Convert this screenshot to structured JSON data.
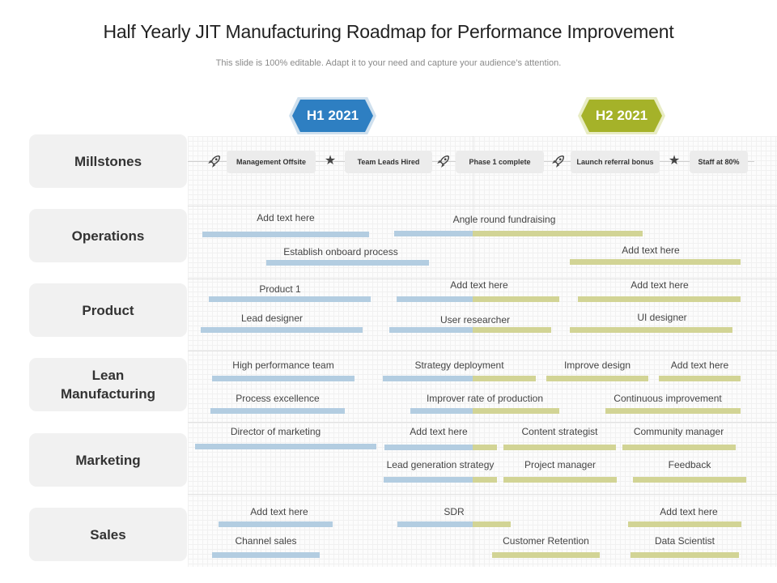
{
  "title": "Half Yearly JIT Manufacturing Roadmap for Performance Improvement",
  "subtitle": "This slide is 100% editable. Adapt it to your need and capture your audience’s attention.",
  "colors": {
    "h1": "#2e7fc2",
    "h2": "#a5b229",
    "bar_h1": "#b3cde1",
    "bar_h2": "#d2d495"
  },
  "periods": [
    {
      "label": "H1 2021",
      "color": "#2e7fc2"
    },
    {
      "label": "H2 2021",
      "color": "#a5b229"
    }
  ],
  "rows": [
    {
      "label": "Millstones"
    },
    {
      "label": "Operations"
    },
    {
      "label": "Product"
    },
    {
      "label": "Lean\nManufacturing"
    },
    {
      "label": "Marketing"
    },
    {
      "label": "Sales"
    }
  ],
  "milestones": [
    {
      "label": "Management Offsite",
      "icon": "rocket-icon"
    },
    {
      "label": "Team Leads Hired",
      "icon": "star-icon"
    },
    {
      "label": "Phase 1 complete",
      "icon": "rocket-icon"
    },
    {
      "label": "Launch referral bonus",
      "icon": "rocket-icon"
    },
    {
      "label": "Staff at 80%",
      "icon": "star-icon"
    }
  ],
  "tasks": {
    "operations": [
      "Add text here",
      "Angle round fundraising",
      "Establish onboard process",
      "Add text here"
    ],
    "product": [
      "Product 1",
      "Add text here",
      "Add text here",
      "Lead designer",
      "User researcher",
      "UI designer"
    ],
    "lean": [
      "High performance team",
      "Strategy deployment",
      "Improve design",
      "Add text here",
      "Process excellence",
      "Improver rate of production",
      "Continuous improvement"
    ],
    "marketing": [
      "Director of marketing",
      "Add text here",
      "Content strategist",
      "Community manager",
      "Lead generation strategy",
      "Project manager",
      "Feedback"
    ],
    "sales": [
      "Add text here",
      "SDR",
      "Add text here",
      "Channel sales",
      "Customer Retention",
      "Data Scientist"
    ]
  }
}
